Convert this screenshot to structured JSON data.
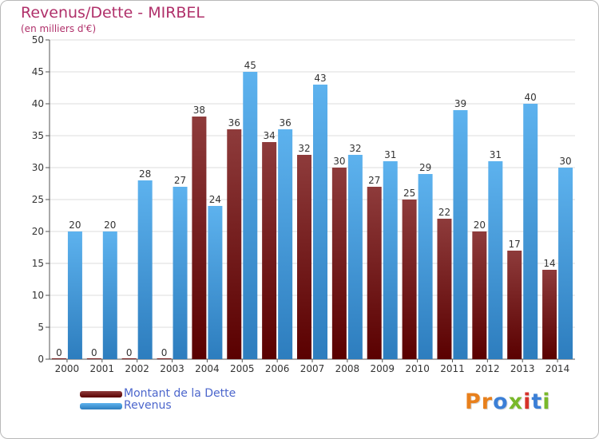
{
  "title": "Revenus/Dette - MIRBEL",
  "subtitle": "(en milliers d'€)",
  "logo": {
    "text": "Proxiti",
    "colors": [
      "#e8801c",
      "#e8801c",
      "#3b7fd6",
      "#79b82a",
      "#d6312a",
      "#3b7fd6",
      "#79b82a"
    ]
  },
  "legend": [
    {
      "label": "Montant de la Dette",
      "color": "#6b0d0d"
    },
    {
      "label": "Revenus",
      "color": "#4aa3e4"
    }
  ],
  "chart_data": {
    "type": "bar",
    "title": "Revenus/Dette - MIRBEL",
    "subtitle": "(en milliers d'€)",
    "xlabel": "",
    "ylabel": "",
    "categories": [
      "2000",
      "2001",
      "2002",
      "2003",
      "2004",
      "2005",
      "2006",
      "2007",
      "2008",
      "2009",
      "2010",
      "2011",
      "2012",
      "2013",
      "2014"
    ],
    "series": [
      {
        "name": "Montant de la Dette",
        "color": "#6b0d0d",
        "values": [
          0,
          0,
          0,
          0,
          38,
          36,
          34,
          32,
          30,
          27,
          25,
          22,
          20,
          17,
          14
        ]
      },
      {
        "name": "Revenus",
        "color": "#4aa3e4",
        "values": [
          20,
          20,
          28,
          27,
          24,
          45,
          36,
          43,
          32,
          31,
          29,
          39,
          31,
          40,
          30
        ]
      }
    ],
    "ylim": [
      0,
      50
    ],
    "yticks": [
      0,
      5,
      10,
      15,
      20,
      25,
      30,
      35,
      40,
      45,
      50
    ],
    "grid": true,
    "legend_position": "bottom-left"
  }
}
